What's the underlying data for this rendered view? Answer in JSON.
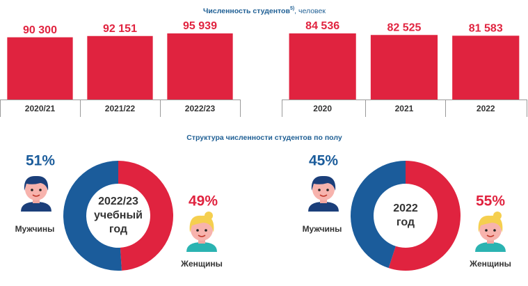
{
  "header": {
    "title": "Численность студентов",
    "note": "5)",
    "unit": ", человек",
    "section_title": "Структура численности студентов  по полу"
  },
  "chart_data": [
    {
      "type": "bar",
      "categories": [
        "2020/21",
        "2021/22",
        "2022/23"
      ],
      "values": [
        90300,
        92151,
        95939
      ],
      "value_labels": [
        "90 300",
        "92 151",
        "95 939"
      ],
      "color": "#e0233f"
    },
    {
      "type": "bar",
      "categories": [
        "2020",
        "2021",
        "2022"
      ],
      "values": [
        84536,
        82525,
        81583
      ],
      "value_labels": [
        "84 536",
        "82 525",
        "81 583"
      ],
      "color": "#e0233f"
    },
    {
      "type": "donut",
      "center_label": [
        "2022/23",
        "учебный",
        "год"
      ],
      "categories": [
        "Мужчины",
        "Женщины"
      ],
      "values": [
        51,
        49
      ],
      "value_labels": [
        "51%",
        "49%"
      ],
      "colors": [
        "#1b5c9b",
        "#e0233f"
      ]
    },
    {
      "type": "donut",
      "center_label": [
        "2022",
        "год"
      ],
      "categories": [
        "Мужчины",
        "Женщины"
      ],
      "values": [
        45,
        55
      ],
      "value_labels": [
        "45%",
        "55%"
      ],
      "colors": [
        "#1b5c9b",
        "#e0233f"
      ]
    }
  ]
}
